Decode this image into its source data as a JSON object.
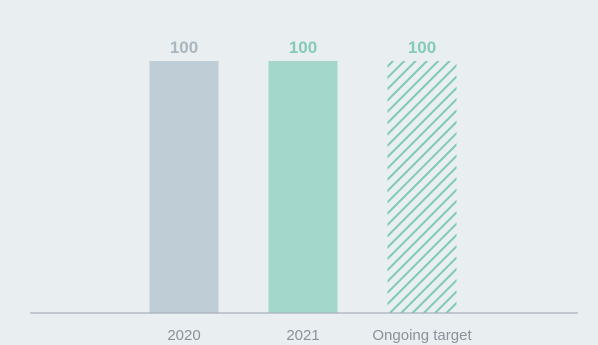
{
  "chart_data": {
    "type": "bar",
    "title": "",
    "xlabel": "",
    "ylabel": "",
    "categories": [
      "2020",
      "2021",
      "Ongoing target"
    ],
    "values": [
      100,
      100,
      100
    ],
    "data_labels": [
      "100",
      "100",
      "100"
    ],
    "ylim": [
      0,
      100
    ],
    "grid": false,
    "legend": "none",
    "styles": [
      {
        "fill": "solid",
        "color": "#bfcdd6",
        "label_color": "#aab7bf"
      },
      {
        "fill": "solid",
        "color": "#a3d7cb",
        "label_color": "#84cbb7"
      },
      {
        "fill": "hatched",
        "color": "#7fcab6",
        "label_color": "#84cbb7"
      }
    ],
    "axis_color": "#a8b1b8"
  }
}
